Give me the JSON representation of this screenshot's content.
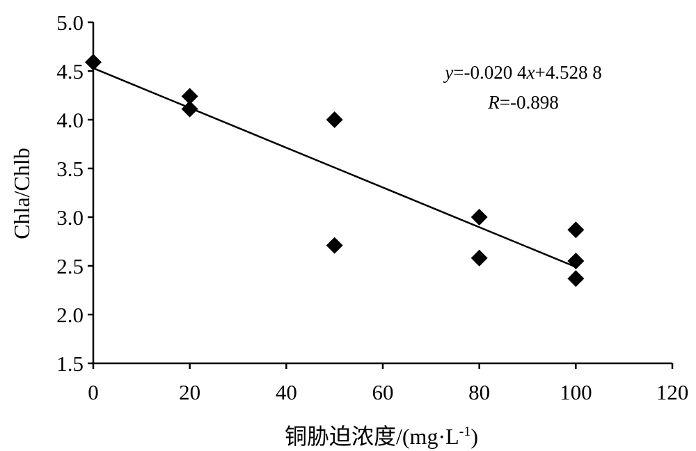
{
  "chart_data": {
    "type": "scatter",
    "title": "",
    "xlabel": "铜胁迫浓度/(mg·L",
    "xlabel_sup": "-1",
    "xlabel_close": ")",
    "ylabel": "Chla/Chlb",
    "xlim": [
      0,
      120
    ],
    "ylim": [
      1.5,
      5.0
    ],
    "xticks": [
      0,
      20,
      40,
      60,
      80,
      100,
      120
    ],
    "yticks": [
      1.5,
      2.0,
      2.5,
      3.0,
      3.5,
      4.0,
      4.5,
      5.0
    ],
    "xtick_labels": [
      "0",
      "20",
      "40",
      "60",
      "80",
      "100",
      "120"
    ],
    "ytick_labels": [
      "1.5",
      "2.0",
      "2.5",
      "3.0",
      "3.5",
      "4.0",
      "4.5",
      "5.0"
    ],
    "grid": false,
    "legend": "none",
    "marker": "diamond",
    "points": [
      {
        "x": 0,
        "y": 4.59
      },
      {
        "x": 20,
        "y": 4.24
      },
      {
        "x": 20,
        "y": 4.11
      },
      {
        "x": 50,
        "y": 4.0
      },
      {
        "x": 50,
        "y": 2.71
      },
      {
        "x": 80,
        "y": 3.0
      },
      {
        "x": 80,
        "y": 2.58
      },
      {
        "x": 100,
        "y": 2.87
      },
      {
        "x": 100,
        "y": 2.55
      },
      {
        "x": 100,
        "y": 2.37
      }
    ],
    "fit_line": {
      "slope": -0.0204,
      "intercept": 4.5288,
      "x_range": [
        0,
        100
      ]
    },
    "annotation": {
      "eq_var_y": "y",
      "eq_mid": "=-0.020 4",
      "eq_var_x": "x",
      "eq_tail": "+4.528 8",
      "r_var": "R",
      "r_tail": "=-0.898"
    }
  }
}
